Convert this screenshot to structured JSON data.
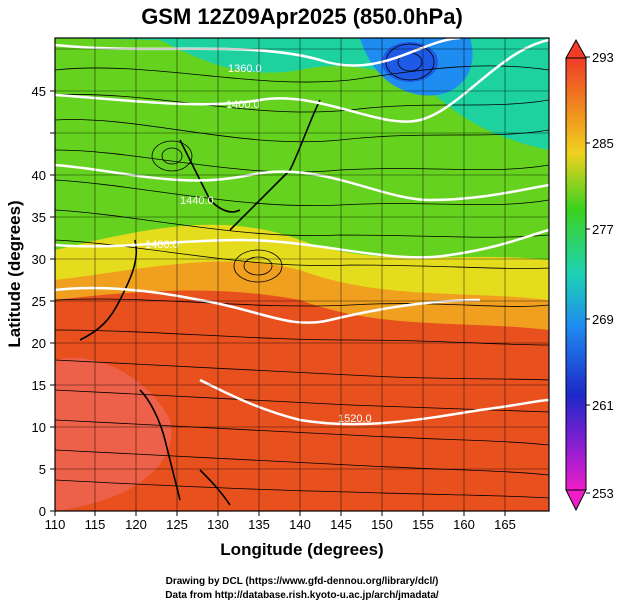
{
  "title": "GSM 12Z09Apr2025 (850.0hPa)",
  "axes": {
    "xlabel": "Longitude (degrees)",
    "ylabel": "Latitude  (degrees)",
    "xticks": [
      "110",
      "115",
      "120",
      "125",
      "130",
      "135",
      "140",
      "145",
      "150",
      "155",
      "160",
      "165"
    ],
    "yticks": [
      "0",
      "5",
      "10",
      "15",
      "20",
      "25",
      "30",
      "35",
      "40",
      "45"
    ],
    "xlim": [
      110,
      170
    ],
    "ylim": [
      0,
      50
    ]
  },
  "colorbar": {
    "labels": [
      "293",
      "285",
      "277",
      "269",
      "261",
      "253"
    ],
    "range": [
      253,
      293
    ]
  },
  "contours": {
    "labels": [
      "1360.0",
      "1400.0",
      "1440.0",
      "1480.0",
      "1520.0"
    ],
    "color": "#ffffff"
  },
  "field_colors": {
    "warm": "#e8321e",
    "orange": "#f07a1e",
    "yellow": "#f0d21e",
    "green": "#46d21e",
    "cyan": "#1ed2c8",
    "blue": "#1e64e6",
    "grid": "#000000"
  },
  "credits": {
    "line1": "Drawing by DCL (https://www.gfd-dennou.org/library/dcl/)",
    "line2": "Data from http://database.rish.kyoto-u.ac.jp/arch/jmadata/"
  }
}
